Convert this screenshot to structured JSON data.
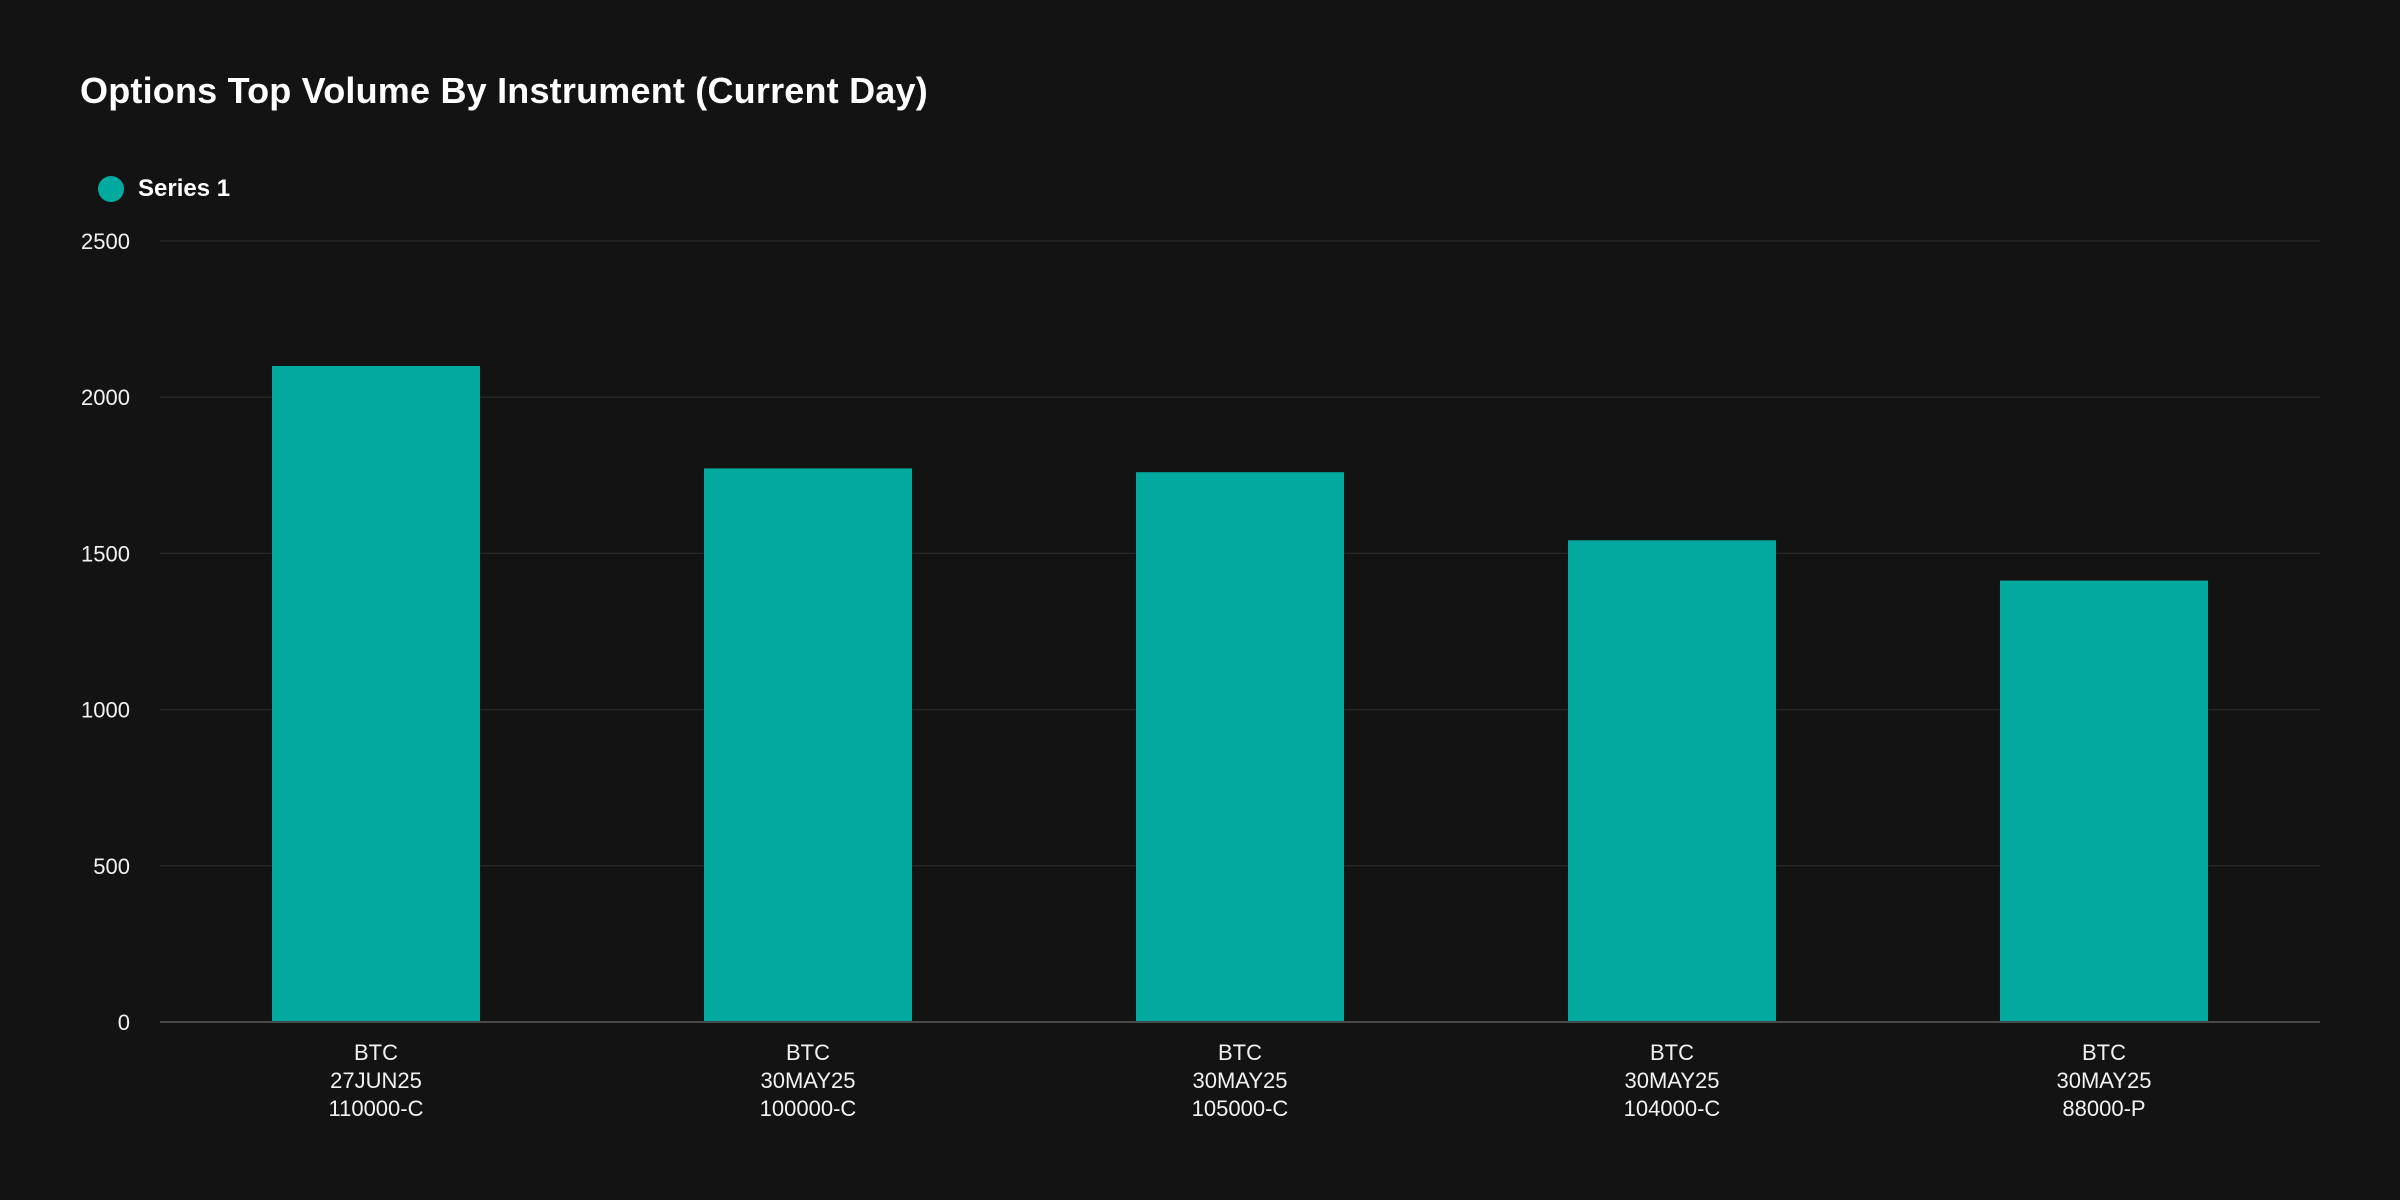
{
  "title": "Options Top Volume By Instrument (Current Day)",
  "colors": {
    "background": "#131313",
    "bar": "#02a99f",
    "grid": "#262626",
    "axis": "#4a4a4a",
    "text": "#f2f2f2"
  },
  "chart_data": {
    "type": "bar",
    "title": "Options Top Volume By Instrument (Current Day)",
    "xlabel": "",
    "ylabel": "",
    "ylim": [
      0,
      2500
    ],
    "yticks": [
      0,
      500,
      1000,
      1500,
      2000,
      2500
    ],
    "grid": true,
    "legend": "top-left",
    "categories": [
      [
        "BTC",
        "27JUN25",
        "110000-C"
      ],
      [
        "BTC",
        "30MAY25",
        "100000-C"
      ],
      [
        "BTC",
        "30MAY25",
        "105000-C"
      ],
      [
        "BTC",
        "30MAY25",
        "104000-C"
      ],
      [
        "BTC",
        "30MAY25",
        "88000-P"
      ]
    ],
    "series": [
      {
        "name": "Series 1",
        "color": "#02a99f",
        "values": [
          2100,
          1772,
          1760,
          1542,
          1413
        ]
      }
    ]
  }
}
